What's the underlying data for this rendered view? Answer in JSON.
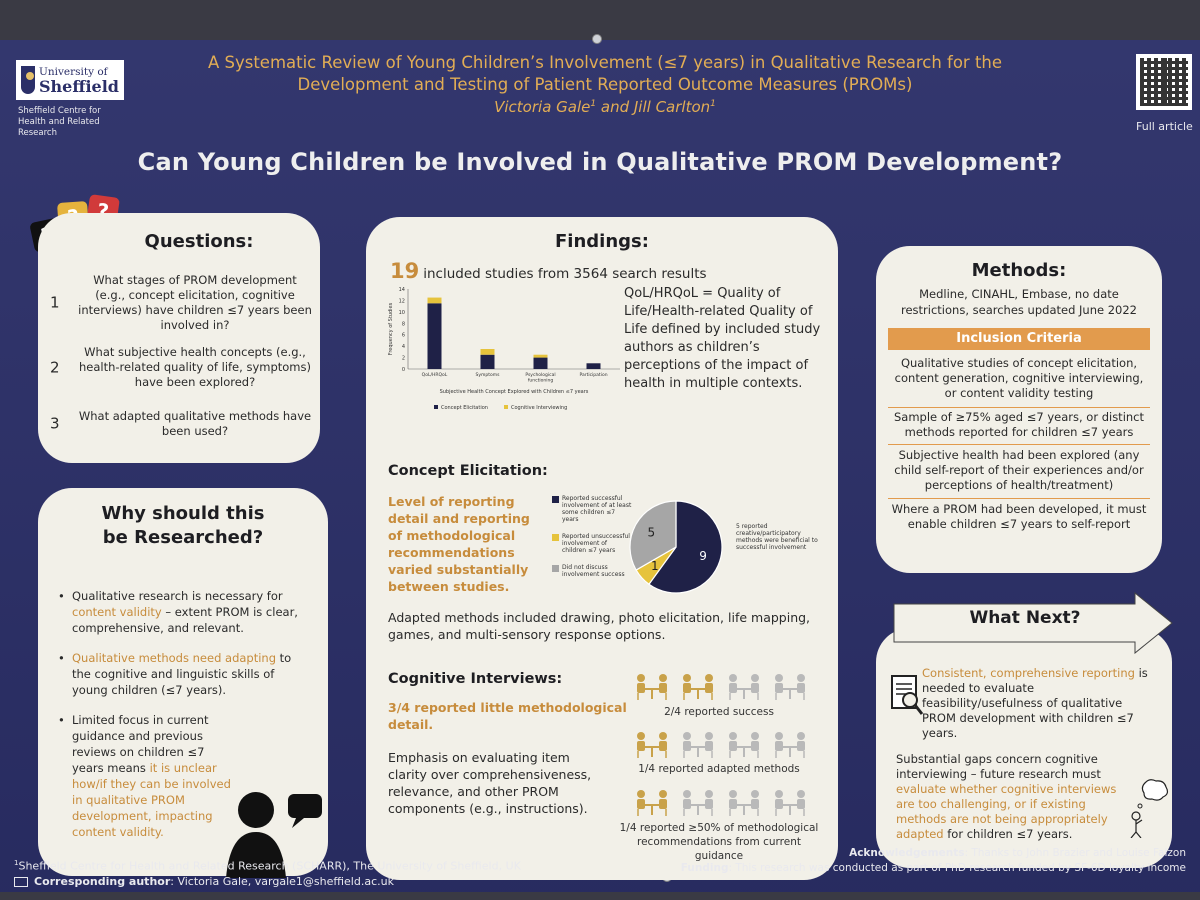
{
  "header": {
    "university_line1": "University of",
    "university_line2": "Sheffield",
    "centre": "Sheffield Centre for Health and Related Research",
    "title_line1": "A Systematic Review of Young Children’s Involvement (≤7 years) in Qualitative Research for the",
    "title_line2": "Development and Testing of Patient Reported Outcome Measures (PROMs)",
    "author1": "Victoria Gale",
    "author2": "Jill Carlton",
    "author_sup": "1",
    "author_join": " and ",
    "qr_label": "Full article",
    "main_question": "Can Young Children be Involved in Qualitative PROM Development?"
  },
  "questions": {
    "heading": "Questions:",
    "items": [
      {
        "num": "1",
        "text": "What stages of PROM development (e.g., concept elicitation, cognitive interviews) have children ≤7 years been involved in?"
      },
      {
        "num": "2",
        "text": "What subjective health concepts (e.g., health-related quality of life, symptoms) have been explored?"
      },
      {
        "num": "3",
        "text": "What adapted qualitative methods have been used?"
      }
    ]
  },
  "why": {
    "heading": "Why should this be Researched?",
    "b1_pre": "Qualitative research is necessary for ",
    "b1_gold": "content validity",
    "b1_post": " – extent PROM is clear, comprehensive, and relevant.",
    "b2_gold": "Qualitative methods need adapting",
    "b2_post": " to the cognitive and linguistic skills of young children (≤7 years).",
    "b3_pre": "Limited focus in current guidance and previous reviews on children ≤7 years means ",
    "b3_gold": "it is unclear how/if they can be involved in qualitative PROM development, impacting content validity."
  },
  "findings": {
    "heading": "Findings:",
    "count": "19",
    "count_text": "included studies from 3564 search results",
    "definition": "QoL/HRQoL = Quality of Life/Health-related Quality of Life defined by included study authors as children’s perceptions of the impact of health in multiple contexts.",
    "concept_heading": "Concept Elicitation:",
    "concept_text": "Level of reporting detail and reporting of methodological recommendations varied substantially between studies.",
    "pie_legend": [
      "Reported successful involvement of at least some children ≤7 years",
      "Reported unsuccessful involvement of children ≤7 years",
      "Did not discuss involvement success"
    ],
    "pie_note": "5 reported creative/participatory methods were beneficial to successful involvement",
    "adapted_text": "Adapted methods included drawing, photo elicitation, life mapping, games, and multi-sensory response options.",
    "cog_heading": "Cognitive Interviews:",
    "cog_bold": "3/4 reported little methodological detail.",
    "cog_text": "Emphasis on evaluating item clarity over comprehensiveness, relevance, and other PROM components (e.g., instructions).",
    "icon_caption1": "2/4 reported success",
    "icon_caption2": "1/4 reported adapted methods",
    "icon_caption3": "1/4 reported ≥50% of methodological recommendations from current guidance"
  },
  "chart_data": [
    {
      "type": "bar",
      "stacked": true,
      "categories": [
        "QoL/HRQoL",
        "Symptoms",
        "Psychological functioning",
        "Participation"
      ],
      "series": [
        {
          "name": "Concept Elicitation",
          "values": [
            11.5,
            2.5,
            2,
            1
          ],
          "color": "#1f2147"
        },
        {
          "name": "Cognitive Interviewing",
          "values": [
            1,
            1,
            0.5,
            0
          ],
          "color": "#e6c33c"
        }
      ],
      "ylabel": "Frequency of Studies",
      "xlabel": "Subjective Health Concept Explored with Children ≤7 years",
      "yticks": [
        "0",
        "2",
        "4",
        "6",
        "8",
        "10",
        "12",
        "14"
      ],
      "ylim": [
        0,
        14
      ],
      "legend": "bottom"
    },
    {
      "type": "pie",
      "labels": [
        "Reported successful involvement",
        "Reported unsuccessful involvement",
        "Did not discuss involvement success"
      ],
      "values": [
        9,
        1,
        5
      ],
      "value_labels": [
        "9",
        "1",
        "5"
      ],
      "colors": [
        "#1f2147",
        "#e6c33c",
        "#a6a6a6"
      ]
    }
  ],
  "methods": {
    "heading": "Methods:",
    "text": "Medline, CINAHL, Embase, no date restrictions, searches updated June 2022",
    "inclusion_heading": "Inclusion Criteria",
    "criteria": [
      "Qualitative studies of concept elicitation, content generation, cognitive interviewing, or content validity testing",
      "Sample of ≥75% aged ≤7 years, or distinct methods reported for children ≤7 years",
      "Subjective health had been explored (any child self-report of their experiences and/or perceptions of health/treatment)",
      "Where a PROM had been developed, it must enable children ≤7 years to self-report"
    ]
  },
  "next": {
    "heading": "What Next?",
    "p1_gold": "Consistent, comprehensive reporting",
    "p1_post": " is needed to evaluate feasibility/usefulness of qualitative PROM development with children ≤7 years.",
    "p2_pre": "Substantial gaps concern cognitive interviewing – future research must ",
    "p2_gold": "evaluate whether cognitive interviews are too challenging, or if existing methods are not being appropriately adapted",
    "p2_post": " for children ≤7 years."
  },
  "footer": {
    "affil": "Sheffield Centre for Health and Related Research (SCHARR), The University of Sheffield, UK",
    "affil_sup": "1",
    "corr_label": "Corresponding author",
    "corr_text": ": Victoria Gale, vargale1@sheffield.ac.uk",
    "ack_label": "Acknowledgements",
    "ack_text": ": Thanks to John Brazier and Louise Falzon",
    "fund_label": "Funding",
    "fund_text": ": This research was conducted as part of PhD research funded by SF-6D loyalty income"
  },
  "colors": {
    "navy": "#2b2f68",
    "gold": "#c78c3c",
    "orange": "#e29b4d",
    "panel": "#f2f0e8"
  },
  "icons": [
    "question-bubble-icon",
    "child-silhouette-icon",
    "speech-bubble-icon",
    "interview-icon",
    "document-magnifier-icon",
    "thinking-person-icon",
    "mail-icon",
    "arrow-icon"
  ]
}
